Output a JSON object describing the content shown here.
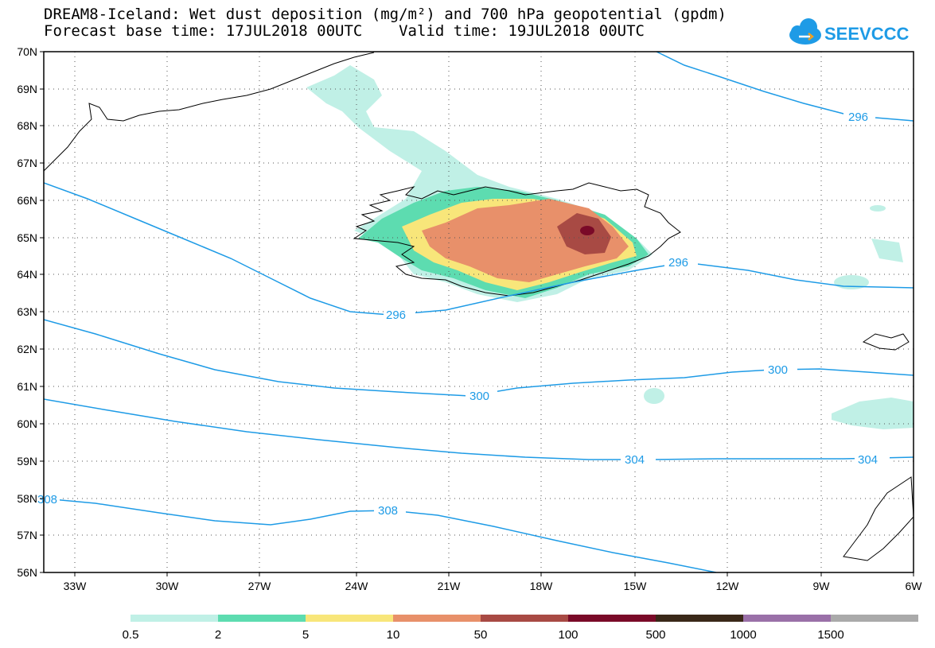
{
  "title_line1": "DREAM8-Iceland: Wet dust deposition (mg/m²) and 700 hPa geopotential (gpdm)",
  "title_line2": "Forecast base time: 17JUL2018 00UTC    Valid time: 19JUL2018 00UTC",
  "logo_text": "SEEVCCC",
  "lat_labels": [
    "70N",
    "69N",
    "68N",
    "67N",
    "66N",
    "65N",
    "64N",
    "63N",
    "62N",
    "61N",
    "60N",
    "59N",
    "58N",
    "57N",
    "56N"
  ],
  "lon_labels": [
    "33W",
    "30W",
    "27W",
    "24W",
    "21W",
    "18W",
    "15W",
    "12W",
    "9W",
    "6W"
  ],
  "contour_labels": [
    "296",
    "296",
    "296",
    "300",
    "300",
    "304",
    "304",
    "308",
    "308"
  ],
  "colorbar": {
    "colors": [
      "#c0f0e6",
      "#5ddcb0",
      "#f8e67a",
      "#e8906a",
      "#a84a44",
      "#7a0a28",
      "#3a2818",
      "#9a70a8",
      "#aaaaaa"
    ],
    "labels": [
      "0.5",
      "2",
      "5",
      "10",
      "50",
      "100",
      "500",
      "1000",
      "1500"
    ]
  },
  "colors": {
    "contour": "#1e9be6",
    "logo": "#1e9be6"
  }
}
